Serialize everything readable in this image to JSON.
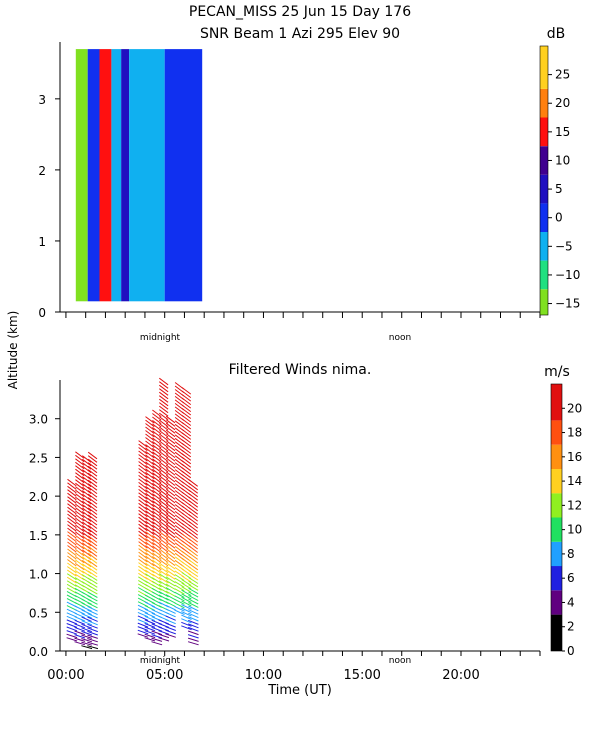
{
  "header": {
    "line1": "PECAN_MISS  25 Jun 15 Day 176",
    "line2": "SNR Beam 1 Azi 295 Elev 90"
  },
  "shared": {
    "ylabel": "Altitude (km)",
    "xlabel": "Time (UT)",
    "midnight_label": "midnight",
    "noon_label": "noon"
  },
  "colors": {
    "snr_scale": [
      "#80e020",
      "#20e080",
      "#10b0f0",
      "#1030f0",
      "#2010c0",
      "#400090",
      "#ff1010",
      "#ff8010",
      "#ffd020"
    ],
    "wind_scale": [
      "#000000",
      "#600080",
      "#2020e0",
      "#20a0ff",
      "#20e060",
      "#90f020",
      "#ffd020",
      "#ff9010",
      "#ff5010",
      "#e01010"
    ]
  },
  "chart_data": [
    {
      "type": "heatmap",
      "title": "SNR Beam 1 Azi 295 Elev 90",
      "ylabel": "Altitude (km)",
      "ylim": [
        0,
        3.8
      ],
      "yticks": [
        0,
        1,
        2,
        3
      ],
      "colorbar": {
        "unit": "dB",
        "ticks": [
          -15,
          -10,
          -5,
          0,
          5,
          10,
          15,
          20,
          25
        ],
        "range": [
          -17,
          30
        ]
      },
      "time_range_hours": [
        -0.3,
        24
      ],
      "data_extent_hours": [
        0.5,
        6.9
      ],
      "data_altitude_km": [
        0.15,
        3.7
      ],
      "profile_bands": [
        {
          "t_start": 0.5,
          "t_end": 1.1,
          "snr_db": -12
        },
        {
          "t_start": 1.1,
          "t_end": 1.7,
          "snr_db": 3
        },
        {
          "t_start": 1.7,
          "t_end": 2.3,
          "snr_db": 15
        },
        {
          "t_start": 2.3,
          "t_end": 2.8,
          "snr_db": -2
        },
        {
          "t_start": 2.8,
          "t_end": 3.2,
          "snr_db": 5
        },
        {
          "t_start": 3.2,
          "t_end": 5.0,
          "snr_db": -3
        },
        {
          "t_start": 5.0,
          "t_end": 6.9,
          "snr_db": 0
        }
      ]
    },
    {
      "type": "barbs",
      "title": "Filtered Winds nima.",
      "xlabel": "Time (UT)",
      "ylabel": "Altitude (km)",
      "ylim": [
        0,
        3.5
      ],
      "yticks": [
        0.0,
        0.5,
        1.0,
        1.5,
        2.0,
        2.5,
        3.0
      ],
      "xticks": [
        "00:00",
        "05:00",
        "10:00",
        "15:00",
        "20:00"
      ],
      "xlim_hours": [
        -0.3,
        24
      ],
      "colorbar": {
        "unit": "m/s",
        "ticks": [
          0,
          2,
          4,
          6,
          8,
          10,
          12,
          14,
          16,
          18,
          20
        ],
        "range": [
          0,
          22
        ]
      },
      "profiles": [
        {
          "t": 0.3,
          "bottom_km": 0.15,
          "top_km": 2.2
        },
        {
          "t": 0.7,
          "bottom_km": 0.1,
          "top_km": 2.55
        },
        {
          "t": 1.05,
          "bottom_km": 0.05,
          "top_km": 2.5
        },
        {
          "t": 1.35,
          "bottom_km": 0.05,
          "top_km": 2.55
        },
        {
          "t": 3.9,
          "bottom_km": 0.2,
          "top_km": 2.7
        },
        {
          "t": 4.25,
          "bottom_km": 0.15,
          "top_km": 3.0
        },
        {
          "t": 4.6,
          "bottom_km": 0.1,
          "top_km": 3.1
        },
        {
          "t": 4.95,
          "bottom_km": 0.15,
          "top_km": 3.5
        },
        {
          "t": 5.3,
          "bottom_km": 0.2,
          "top_km": 3.0
        },
        {
          "t": 5.75,
          "bottom_km": 0.5,
          "top_km": 3.45
        },
        {
          "t": 6.1,
          "bottom_km": 0.3,
          "top_km": 3.4
        },
        {
          "t": 6.45,
          "bottom_km": 0.1,
          "top_km": 2.2
        }
      ]
    }
  ]
}
